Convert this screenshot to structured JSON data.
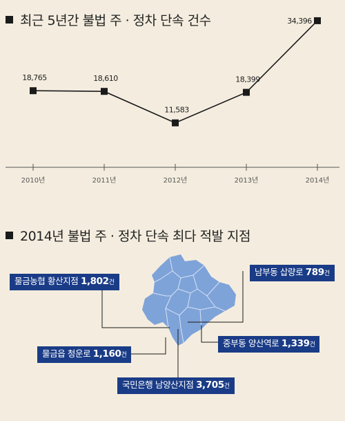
{
  "chart_data": {
    "type": "line",
    "title": "최근 5년간 불법 주 · 정차 단속 건수",
    "categories": [
      "2010년",
      "2011년",
      "2012년",
      "2013년",
      "2014년"
    ],
    "values": [
      18765,
      18610,
      11583,
      18399,
      34396
    ],
    "value_labels": [
      "18,765",
      "18,610",
      "11,583",
      "18,399",
      "34,396"
    ],
    "ylim": [
      10000,
      35000
    ],
    "grid": false,
    "legend": "none",
    "color": "#1a1a1a"
  },
  "map_section": {
    "title": "2014년 불법 주 · 정차 단속 최다 적발 지점",
    "map_color": "#7ea3d9",
    "label_color": "#1a3c87",
    "labels": [
      {
        "name": "물금농협 황산지점",
        "count": "1,802",
        "unit": "건"
      },
      {
        "name": "남부동 삽량로",
        "count": "789",
        "unit": "건"
      },
      {
        "name": "중부동 양산역로",
        "count": "1,339",
        "unit": "건"
      },
      {
        "name": "물금읍 청운로",
        "count": "1,160",
        "unit": "건"
      },
      {
        "name": "국민은행 남양산지점",
        "count": "3,705",
        "unit": "건"
      }
    ]
  }
}
